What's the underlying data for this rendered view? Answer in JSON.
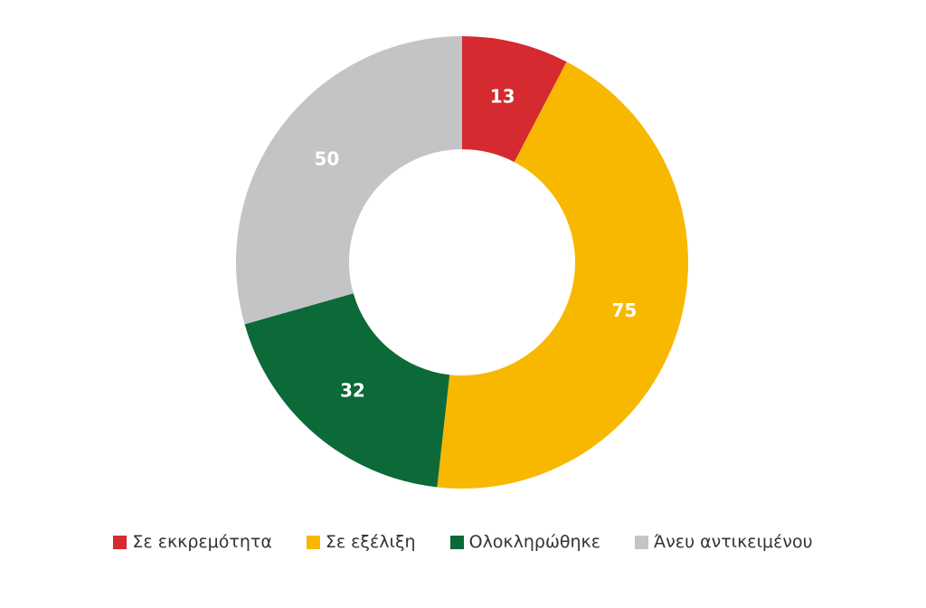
{
  "chart_data": {
    "type": "donut",
    "categories": [
      "Σε εκκρεμότητα",
      "Σε εξέλιξη",
      "Ολοκληρώθηκε",
      "Άνευ αντικειμένου"
    ],
    "values": [
      13,
      75,
      32,
      50
    ],
    "colors": [
      "#d42a30",
      "#f8b800",
      "#0b6a37",
      "#c3c4c6"
    ],
    "legend": "bottom"
  }
}
